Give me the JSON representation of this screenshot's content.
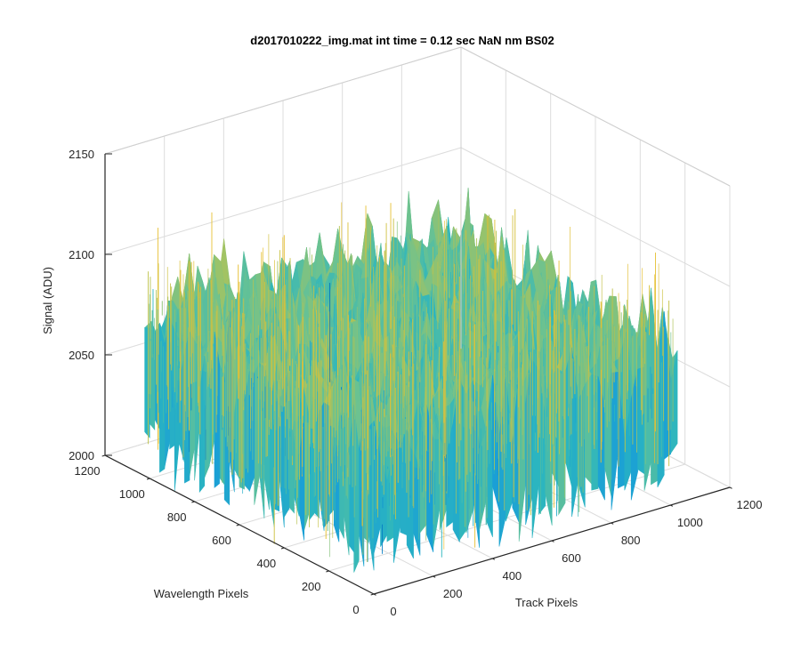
{
  "chart_data": {
    "type": "surface3d",
    "title": "d2017010222_img.mat int time = 0.12 sec  NaN nm BS02",
    "xlabel": "Track Pixels",
    "ylabel": "Wavelength Pixels",
    "zlabel": "Signal (ADU)",
    "xlim": [
      0,
      1200
    ],
    "ylim": [
      0,
      1200
    ],
    "zlim": [
      2000,
      2150
    ],
    "x_ticks": [
      "0",
      "200",
      "400",
      "600",
      "800",
      "1000",
      "1200"
    ],
    "y_ticks": [
      "0",
      "200",
      "400",
      "600",
      "800",
      "1000",
      "1200"
    ],
    "z_ticks": [
      "2000",
      "2050",
      "2100",
      "2150"
    ],
    "x_extent": [
      1,
      1024
    ],
    "y_extent": [
      1,
      1024
    ],
    "z_typical_range": [
      2030,
      2110
    ],
    "z_mean": 2072,
    "colormap": "parula",
    "colormap_colors": [
      "#0072bd",
      "#1a9fd6",
      "#2bb5c0",
      "#6ac292",
      "#b8c350",
      "#e6c032"
    ],
    "grid": true,
    "box": true,
    "view": {
      "azimuth": -37.5,
      "elevation": 30
    }
  }
}
